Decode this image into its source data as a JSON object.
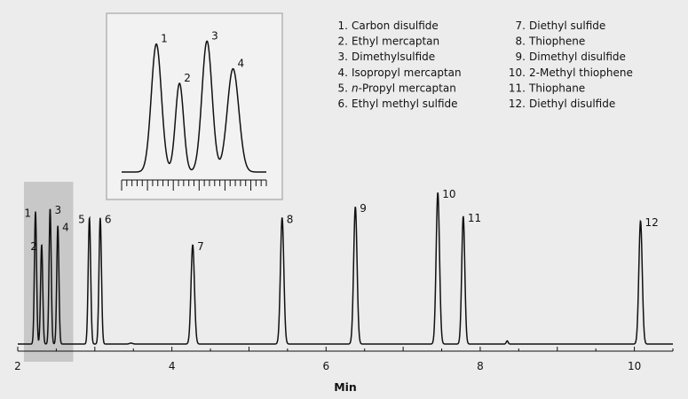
{
  "chart_data": {
    "type": "line",
    "title": "",
    "xlabel": "Min",
    "ylabel": "",
    "xlim": [
      2,
      10.5
    ],
    "x_ticks": [
      2,
      4,
      6,
      8,
      10
    ],
    "grid": false,
    "highlight_region": [
      2.08,
      2.72
    ],
    "peaks": [
      {
        "label": "1",
        "rt": 2.23,
        "height": 0.84,
        "width": 0.014
      },
      {
        "label": "2",
        "rt": 2.31,
        "height": 0.63,
        "width": 0.014
      },
      {
        "label": "3",
        "rt": 2.42,
        "height": 0.86,
        "width": 0.014
      },
      {
        "label": "4",
        "rt": 2.52,
        "height": 0.75,
        "width": 0.014
      },
      {
        "label": "5",
        "rt": 2.93,
        "height": 0.8,
        "width": 0.016
      },
      {
        "label": "6",
        "rt": 3.07,
        "height": 0.8,
        "width": 0.016
      },
      {
        "label": "7",
        "rt": 4.27,
        "height": 0.63,
        "width": 0.022
      },
      {
        "label": "8",
        "rt": 5.43,
        "height": 0.8,
        "width": 0.022
      },
      {
        "label": "9",
        "rt": 6.38,
        "height": 0.87,
        "width": 0.022
      },
      {
        "label": "10",
        "rt": 7.45,
        "height": 0.96,
        "width": 0.022
      },
      {
        "label": "11",
        "rt": 7.78,
        "height": 0.81,
        "width": 0.02
      },
      {
        "label": "12",
        "rt": 10.08,
        "height": 0.78,
        "width": 0.022
      }
    ],
    "inset": {
      "description_labels": [
        "1",
        "2",
        "3",
        "4"
      ],
      "peaks": [
        {
          "label": "1",
          "pos": 0.24,
          "height": 0.88,
          "width": 0.035
        },
        {
          "label": "2",
          "pos": 0.4,
          "height": 0.61,
          "width": 0.028
        },
        {
          "label": "3",
          "pos": 0.59,
          "height": 0.9,
          "width": 0.035
        },
        {
          "label": "4",
          "pos": 0.77,
          "height": 0.71,
          "width": 0.04
        }
      ],
      "minor_tick_count": 28
    },
    "legend": [
      {
        "num": "1.",
        "name": "Carbon disulfide"
      },
      {
        "num": "2.",
        "name": "Ethyl mercaptan"
      },
      {
        "num": "3.",
        "name": "Dimethylsulfide"
      },
      {
        "num": "4.",
        "name": "Isopropyl mercaptan"
      },
      {
        "num": "5.",
        "name_italic": "n",
        "name": "-Propyl mercaptan"
      },
      {
        "num": "6.",
        "name": "Ethyl methyl sulfide"
      },
      {
        "num": "7.",
        "name": "Diethyl sulfide"
      },
      {
        "num": "8.",
        "name": "Thiophene"
      },
      {
        "num": "9.",
        "name": "Dimethyl disulfide"
      },
      {
        "num": "10.",
        "name": "2-Methyl thiophene"
      },
      {
        "num": "11.",
        "name": "Thiophane"
      },
      {
        "num": "12.",
        "name": "Diethyl disulfide"
      }
    ],
    "colors": {
      "background": "#ececec",
      "trace": "#111111",
      "highlight": "#c8c8c8",
      "inset_bg": "#f2f2f2",
      "inset_border": "#b3b3b3"
    }
  }
}
